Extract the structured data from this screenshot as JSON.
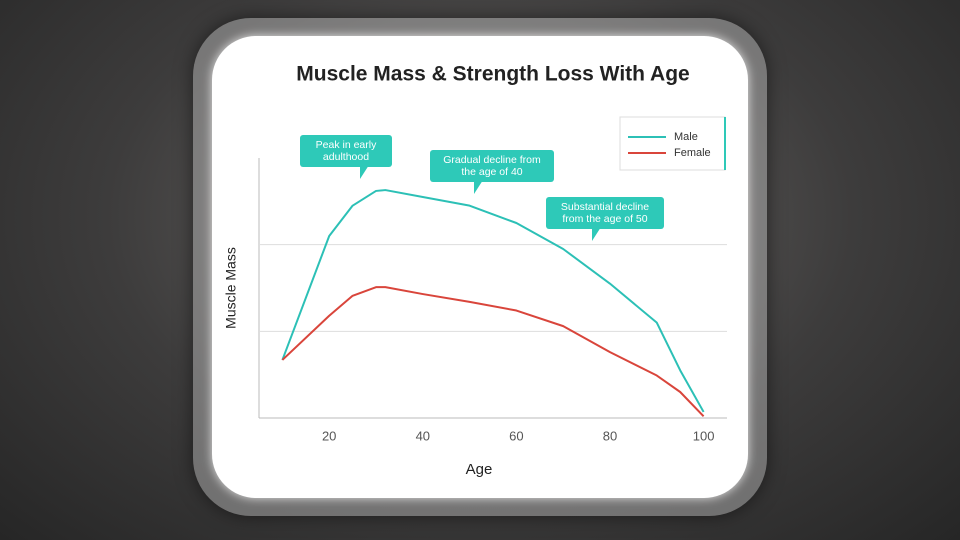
{
  "chart_data": {
    "type": "line",
    "title": "Muscle Mass & Strength Loss With Age",
    "xlabel": "Age",
    "ylabel": "Muscle Mass",
    "x": [
      10,
      20,
      25,
      30,
      32,
      40,
      50,
      60,
      70,
      80,
      90,
      95,
      100
    ],
    "series": [
      {
        "name": "Male",
        "color": "#2cc0b6",
        "values": [
          0.67,
          2.1,
          2.45,
          2.62,
          2.63,
          2.55,
          2.45,
          2.25,
          1.95,
          1.55,
          1.1,
          0.55,
          0.07
        ]
      },
      {
        "name": "Female",
        "color": "#d9453b",
        "values": [
          0.67,
          1.18,
          1.41,
          1.51,
          1.51,
          1.43,
          1.34,
          1.24,
          1.06,
          0.76,
          0.49,
          0.3,
          0.02
        ]
      }
    ],
    "xlim": [
      5,
      105
    ],
    "ylim": [
      0,
      3
    ],
    "xticks": [
      20,
      40,
      60,
      80,
      100
    ],
    "ygrid": [
      1,
      2
    ],
    "legend": "top-right",
    "annotations": [
      {
        "text": "Peak in early adulthood"
      },
      {
        "text": "Gradual decline from the age of 40"
      },
      {
        "text": "Substantial decline from the age of 50"
      }
    ]
  }
}
